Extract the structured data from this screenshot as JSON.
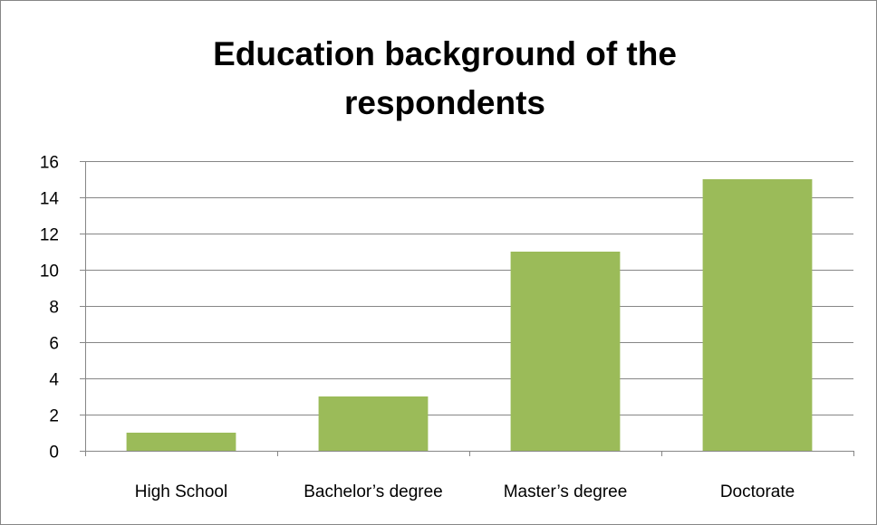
{
  "chart_data": {
    "type": "bar",
    "title_lines": [
      "Education background of the",
      "respondents"
    ],
    "categories": [
      "High School",
      "Bachelor’s degree",
      "Master’s degree",
      "Doctorate"
    ],
    "values": [
      1,
      3,
      11,
      15
    ],
    "ylim": [
      0,
      16
    ],
    "yticks": [
      "0",
      "2",
      "4",
      "6",
      "8",
      "10",
      "12",
      "14",
      "16"
    ],
    "grid": true,
    "legend": "none",
    "bar_color": "#9BBB59",
    "gridline_color": "#868686"
  }
}
